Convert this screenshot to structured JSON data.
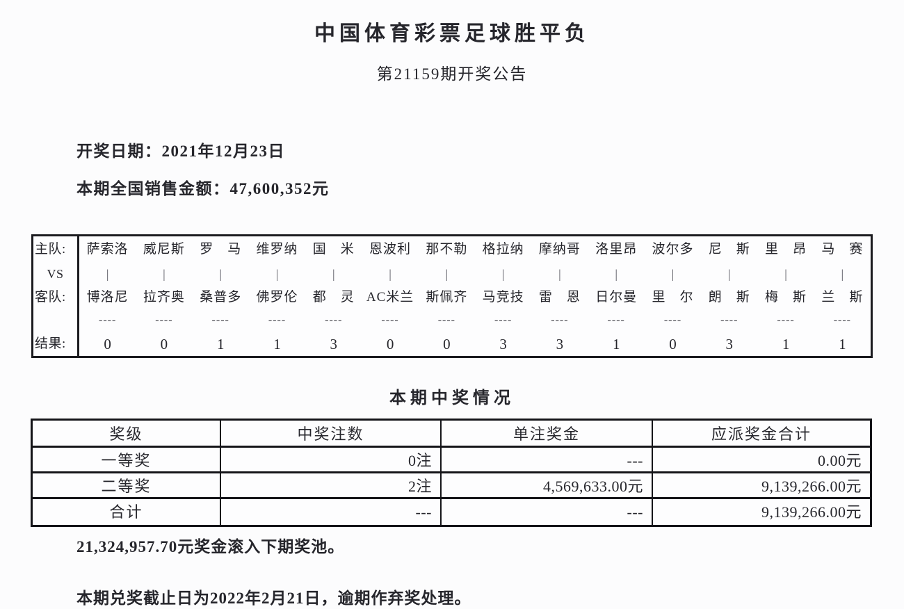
{
  "doc": {
    "title": "中国体育彩票足球胜平负",
    "subtitle": "第21159期开奖公告",
    "draw_date": "开奖日期：2021年12月23日",
    "sales_amount": "本期全国销售金额：47,600,352元"
  },
  "match_table": {
    "labels": {
      "home": "主队:",
      "vs": "VS",
      "away": "客队:",
      "result": "结果:"
    },
    "separator": "|",
    "dashes": "----",
    "matches": [
      {
        "home": "萨索洛",
        "away": "博洛尼",
        "result": "0"
      },
      {
        "home": "威尼斯",
        "away": "拉齐奥",
        "result": "0"
      },
      {
        "home": "罗　马",
        "away": "桑普多",
        "result": "1"
      },
      {
        "home": "维罗纳",
        "away": "佛罗伦",
        "result": "1"
      },
      {
        "home": "国　米",
        "away": "都　灵",
        "result": "3"
      },
      {
        "home": "恩波利",
        "away": "AC米兰",
        "result": "0"
      },
      {
        "home": "那不勒",
        "away": "斯佩齐",
        "result": "0"
      },
      {
        "home": "格拉纳",
        "away": "马竞技",
        "result": "3"
      },
      {
        "home": "摩纳哥",
        "away": "雷　恩",
        "result": "3"
      },
      {
        "home": "洛里昂",
        "away": "日尔曼",
        "result": "1"
      },
      {
        "home": "波尔多",
        "away": "里　尔",
        "result": "0"
      },
      {
        "home": "尼　斯",
        "away": "朗　斯",
        "result": "3"
      },
      {
        "home": "里　昂",
        "away": "梅　斯",
        "result": "1"
      },
      {
        "home": "马　赛",
        "away": "兰　斯",
        "result": "1"
      }
    ]
  },
  "prize_section": {
    "heading": "本期中奖情况",
    "headers": [
      "奖级",
      "中奖注数",
      "单注奖金",
      "应派奖金合计"
    ],
    "rows": [
      {
        "level": "一等奖",
        "count": "0注",
        "single_prize": "---",
        "total_prize": "0.00元"
      },
      {
        "level": "二等奖",
        "count": "2注",
        "single_prize": "4,569,633.00元",
        "total_prize": "9,139,266.00元"
      },
      {
        "level": "合计",
        "count": "---",
        "single_prize": "---",
        "total_prize": "9,139,266.00元"
      }
    ]
  },
  "footer": {
    "rollover": "21,324,957.70元奖金滚入下期奖池。",
    "deadline": "本期兑奖截止日为2022年2月21日，逾期作弃奖处理。"
  }
}
